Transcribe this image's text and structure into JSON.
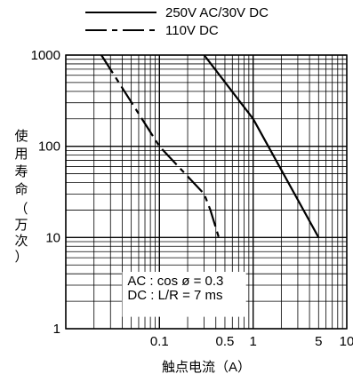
{
  "chart_data": {
    "type": "line",
    "xscale": "log",
    "yscale": "log",
    "xlim": [
      0.01,
      10
    ],
    "ylim": [
      1,
      1000
    ],
    "xlabel": "触点电流（A）",
    "ylabel_chars": [
      "使",
      "用",
      "寿",
      "命",
      "（",
      "万",
      "次",
      "）"
    ],
    "x_ticks": [
      {
        "value": 0.1,
        "label": "0.1"
      },
      {
        "value": 0.5,
        "label": "0.5"
      },
      {
        "value": 1,
        "label": "1"
      },
      {
        "value": 5,
        "label": "5"
      },
      {
        "value": 10,
        "label": "10"
      }
    ],
    "y_ticks": [
      {
        "value": 1000,
        "label": "1000"
      },
      {
        "value": 100,
        "label": "100"
      },
      {
        "value": 10,
        "label": "10"
      },
      {
        "value": 1,
        "label": "1"
      }
    ],
    "legend": {
      "position": "top",
      "items": [
        {
          "label": "250V AC/30V DC",
          "style": "solid"
        },
        {
          "label": "110V DC",
          "style": "dashdot"
        }
      ]
    },
    "annotation": [
      "AC : cos ø = 0.3",
      "DC : L/R = 7 ms"
    ],
    "grid": true,
    "series": [
      {
        "style": "solid",
        "points": [
          [
            0.3,
            1000
          ],
          [
            1,
            200
          ],
          [
            5,
            10
          ]
        ]
      },
      {
        "style": "dashdot",
        "points": [
          [
            0.024,
            1000
          ],
          [
            0.1,
            100
          ],
          [
            0.3,
            30
          ],
          [
            0.35,
            20
          ],
          [
            0.43,
            10
          ]
        ]
      }
    ]
  }
}
